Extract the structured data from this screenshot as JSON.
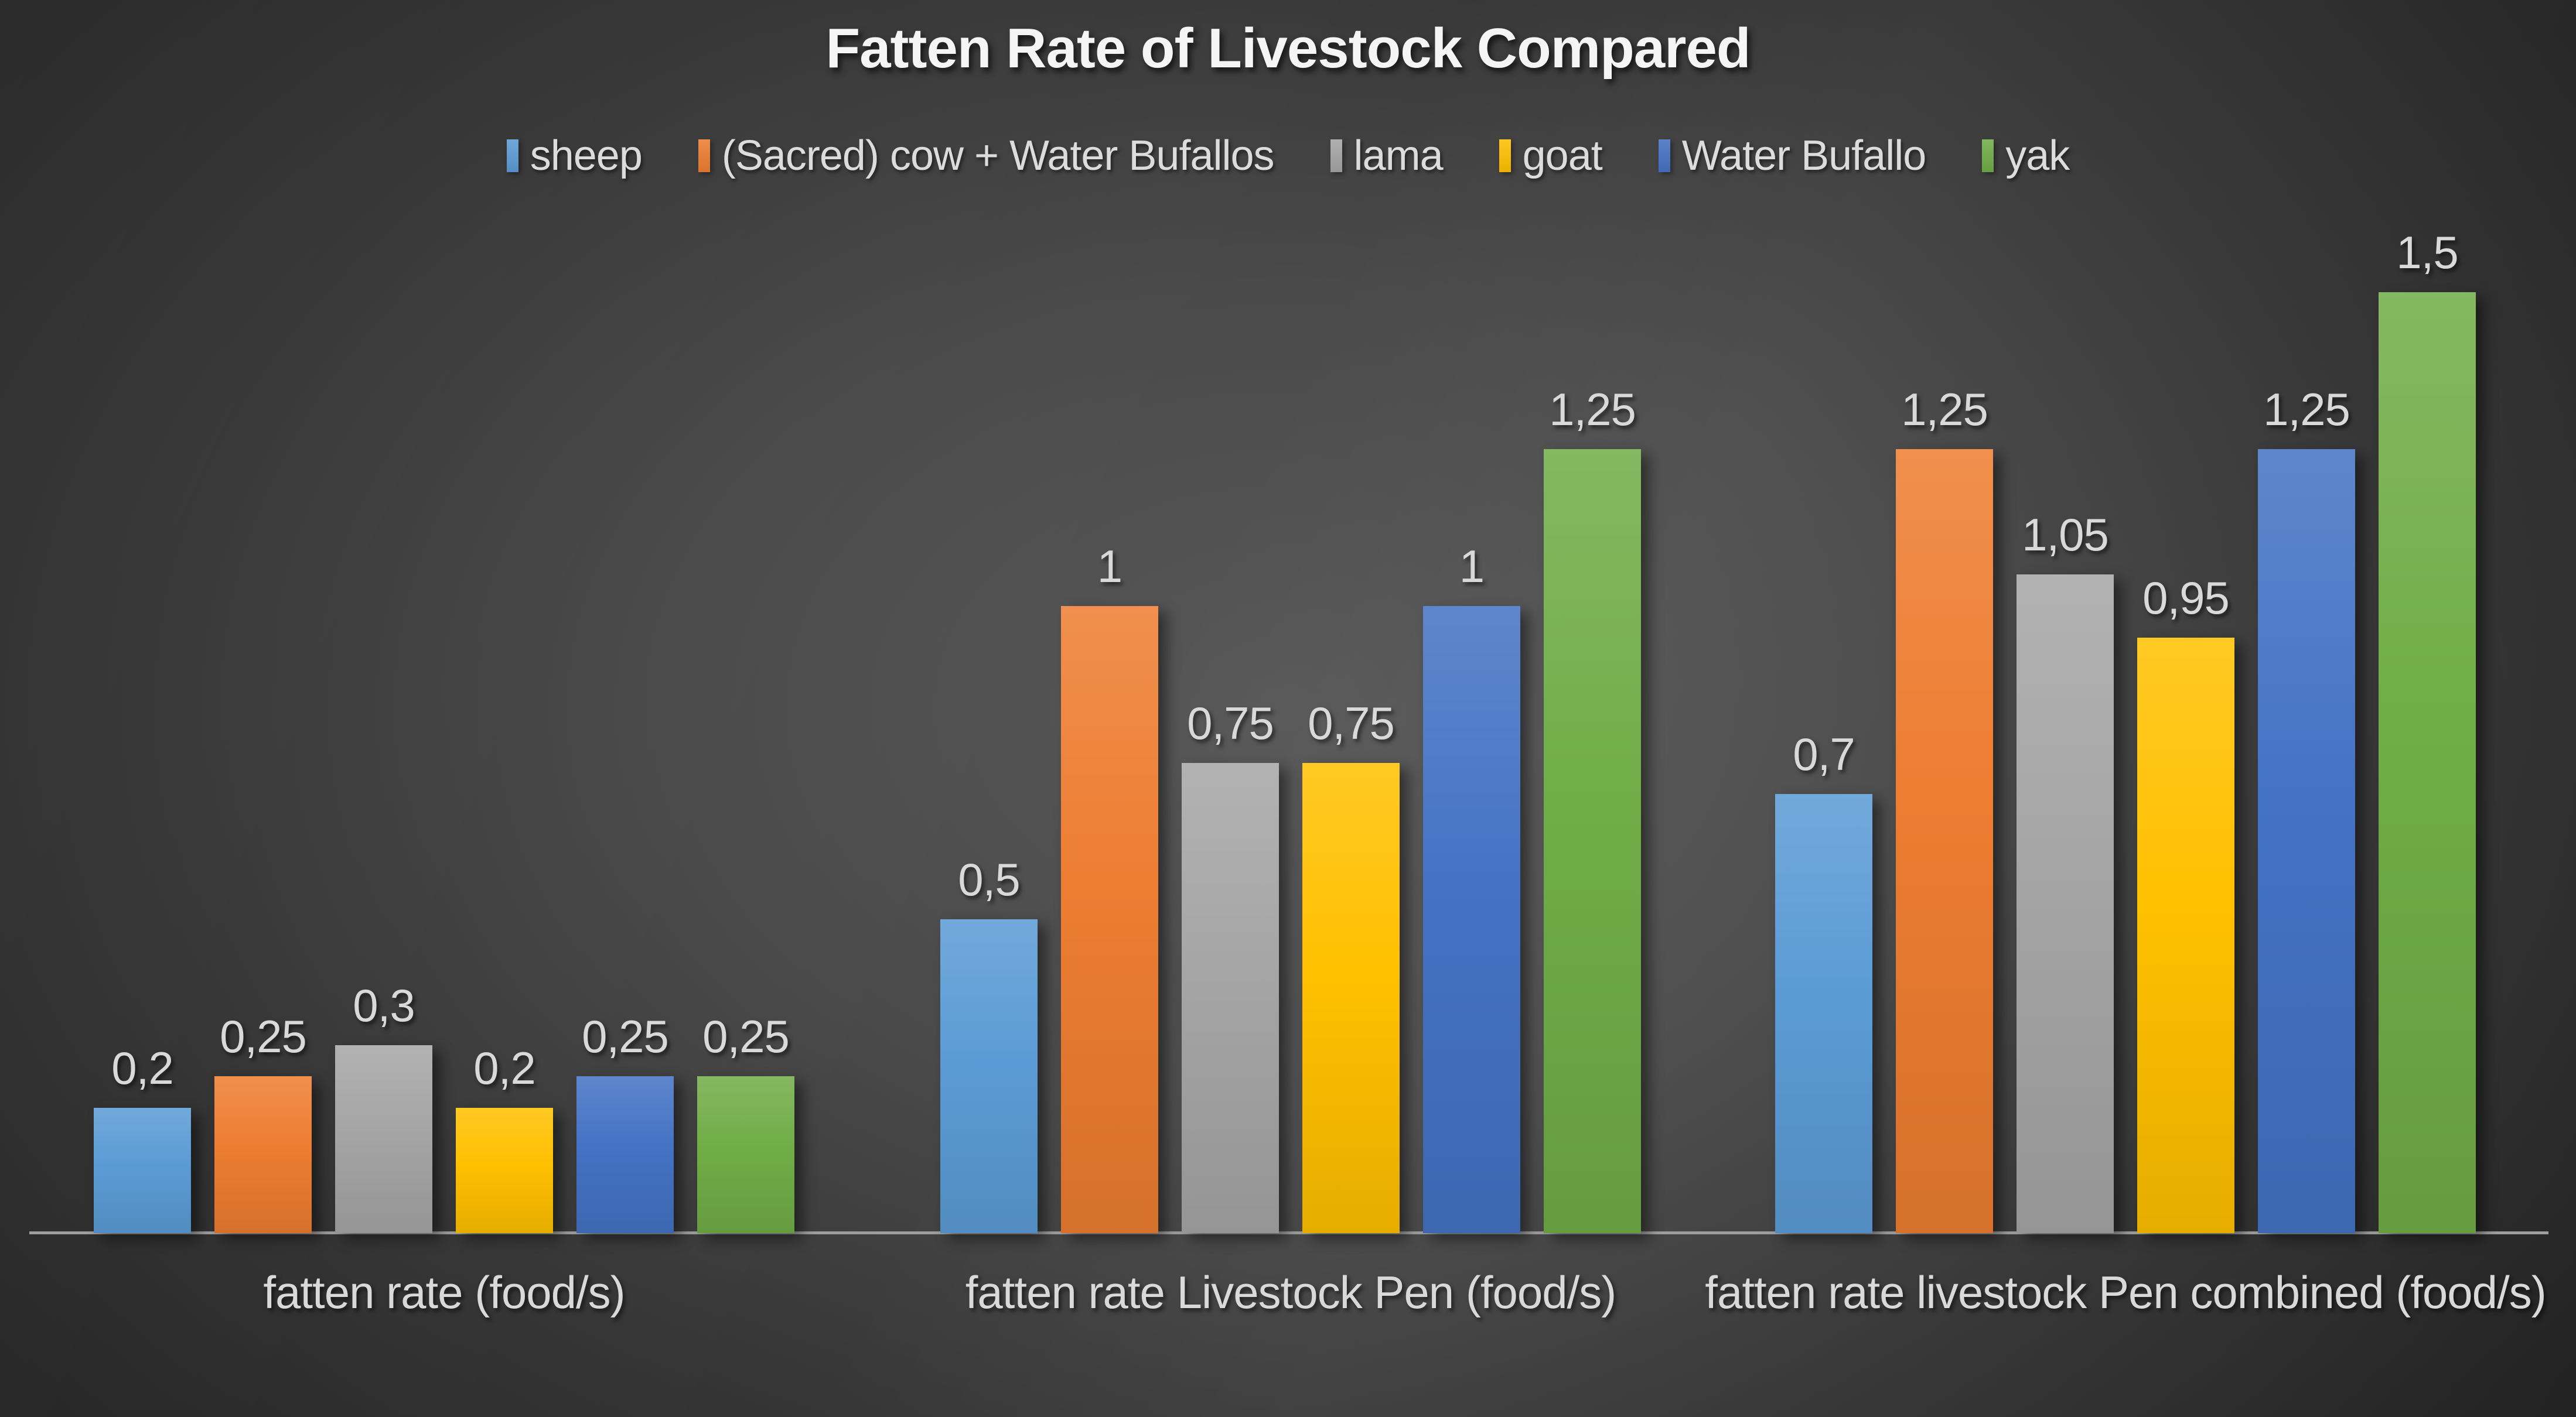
{
  "title": "Fatten Rate of Livestock Compared",
  "style_colors": {
    "background_center": "#585858",
    "background_edge": "#252525",
    "title_text": "#f5f5f5",
    "label_text": "#d9d9d9",
    "legend_text": "#dcdcdc",
    "axis_line": "#9e9e9e"
  },
  "chart_data": {
    "type": "bar",
    "title": "Fatten Rate of Livestock Compared",
    "xlabel": "",
    "ylabel": "",
    "ylim": [
      0,
      1.5
    ],
    "grid": false,
    "legend_position": "top",
    "value_label_decimal_separator": ",",
    "categories": [
      "fatten rate (food/s)",
      "fatten rate Livestock Pen (food/s)",
      "fatten rate livestock Pen combined (food/s)"
    ],
    "series": [
      {
        "name": "sheep",
        "color": "#5B9BD5",
        "values": [
          0.2,
          0.5,
          0.7
        ],
        "labels": [
          "0,2",
          "0,5",
          "0,7"
        ]
      },
      {
        "name": "(Sacred) cow + Water Bufallos",
        "color": "#ED7D31",
        "values": [
          0.25,
          1,
          1.25
        ],
        "labels": [
          "0,25",
          "1",
          "1,25"
        ]
      },
      {
        "name": "lama",
        "color": "#A5A5A5",
        "values": [
          0.3,
          0.75,
          1.05
        ],
        "labels": [
          "0,3",
          "0,75",
          "1,05"
        ]
      },
      {
        "name": "goat",
        "color": "#FFC000",
        "values": [
          0.2,
          0.75,
          0.95
        ],
        "labels": [
          "0,2",
          "0,75",
          "0,95"
        ]
      },
      {
        "name": "Water Bufallo",
        "color": "#4472C4",
        "values": [
          0.25,
          1,
          1.25
        ],
        "labels": [
          "0,25",
          "1",
          "1,25"
        ]
      },
      {
        "name": "yak",
        "color": "#70AD47",
        "values": [
          0.25,
          1.25,
          1.5
        ],
        "labels": [
          "0,25",
          "1,25",
          "1,5"
        ]
      }
    ]
  }
}
